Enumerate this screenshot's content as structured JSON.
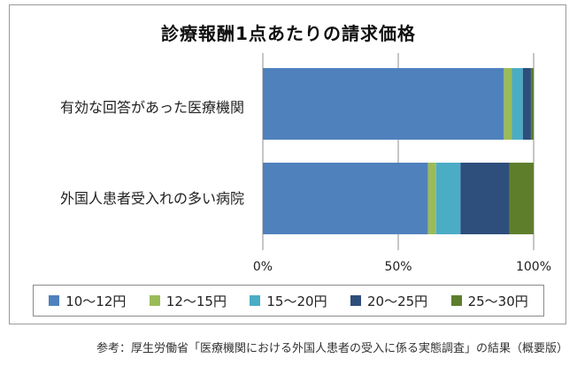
{
  "chart_data": {
    "type": "bar",
    "orientation": "horizontal",
    "stacked": true,
    "title": "診療報酬1点あたりの請求価格",
    "categories": [
      "有効な回答があった医療機関",
      "外国人患者受入れの多い病院"
    ],
    "series": [
      {
        "name": "10～12円",
        "color": "#4f81bd",
        "values": [
          89,
          61
        ]
      },
      {
        "name": "12～15円",
        "color": "#9bbb59",
        "values": [
          3,
          3
        ]
      },
      {
        "name": "15～20円",
        "color": "#4bacc6",
        "values": [
          4,
          9
        ]
      },
      {
        "name": "20～25円",
        "color": "#2e4e7c",
        "values": [
          3,
          18
        ]
      },
      {
        "name": "25～30円",
        "color": "#5e7e2c",
        "values": [
          1,
          9
        ]
      }
    ],
    "xlim": [
      0,
      100
    ],
    "xticks": [
      "0%",
      "50%",
      "100%"
    ],
    "grid": true,
    "legend_position": "bottom"
  },
  "source_note": "参考：厚生労働省「医療機関における外国人患者の受入に係る実態調査」の結果（概要版）"
}
